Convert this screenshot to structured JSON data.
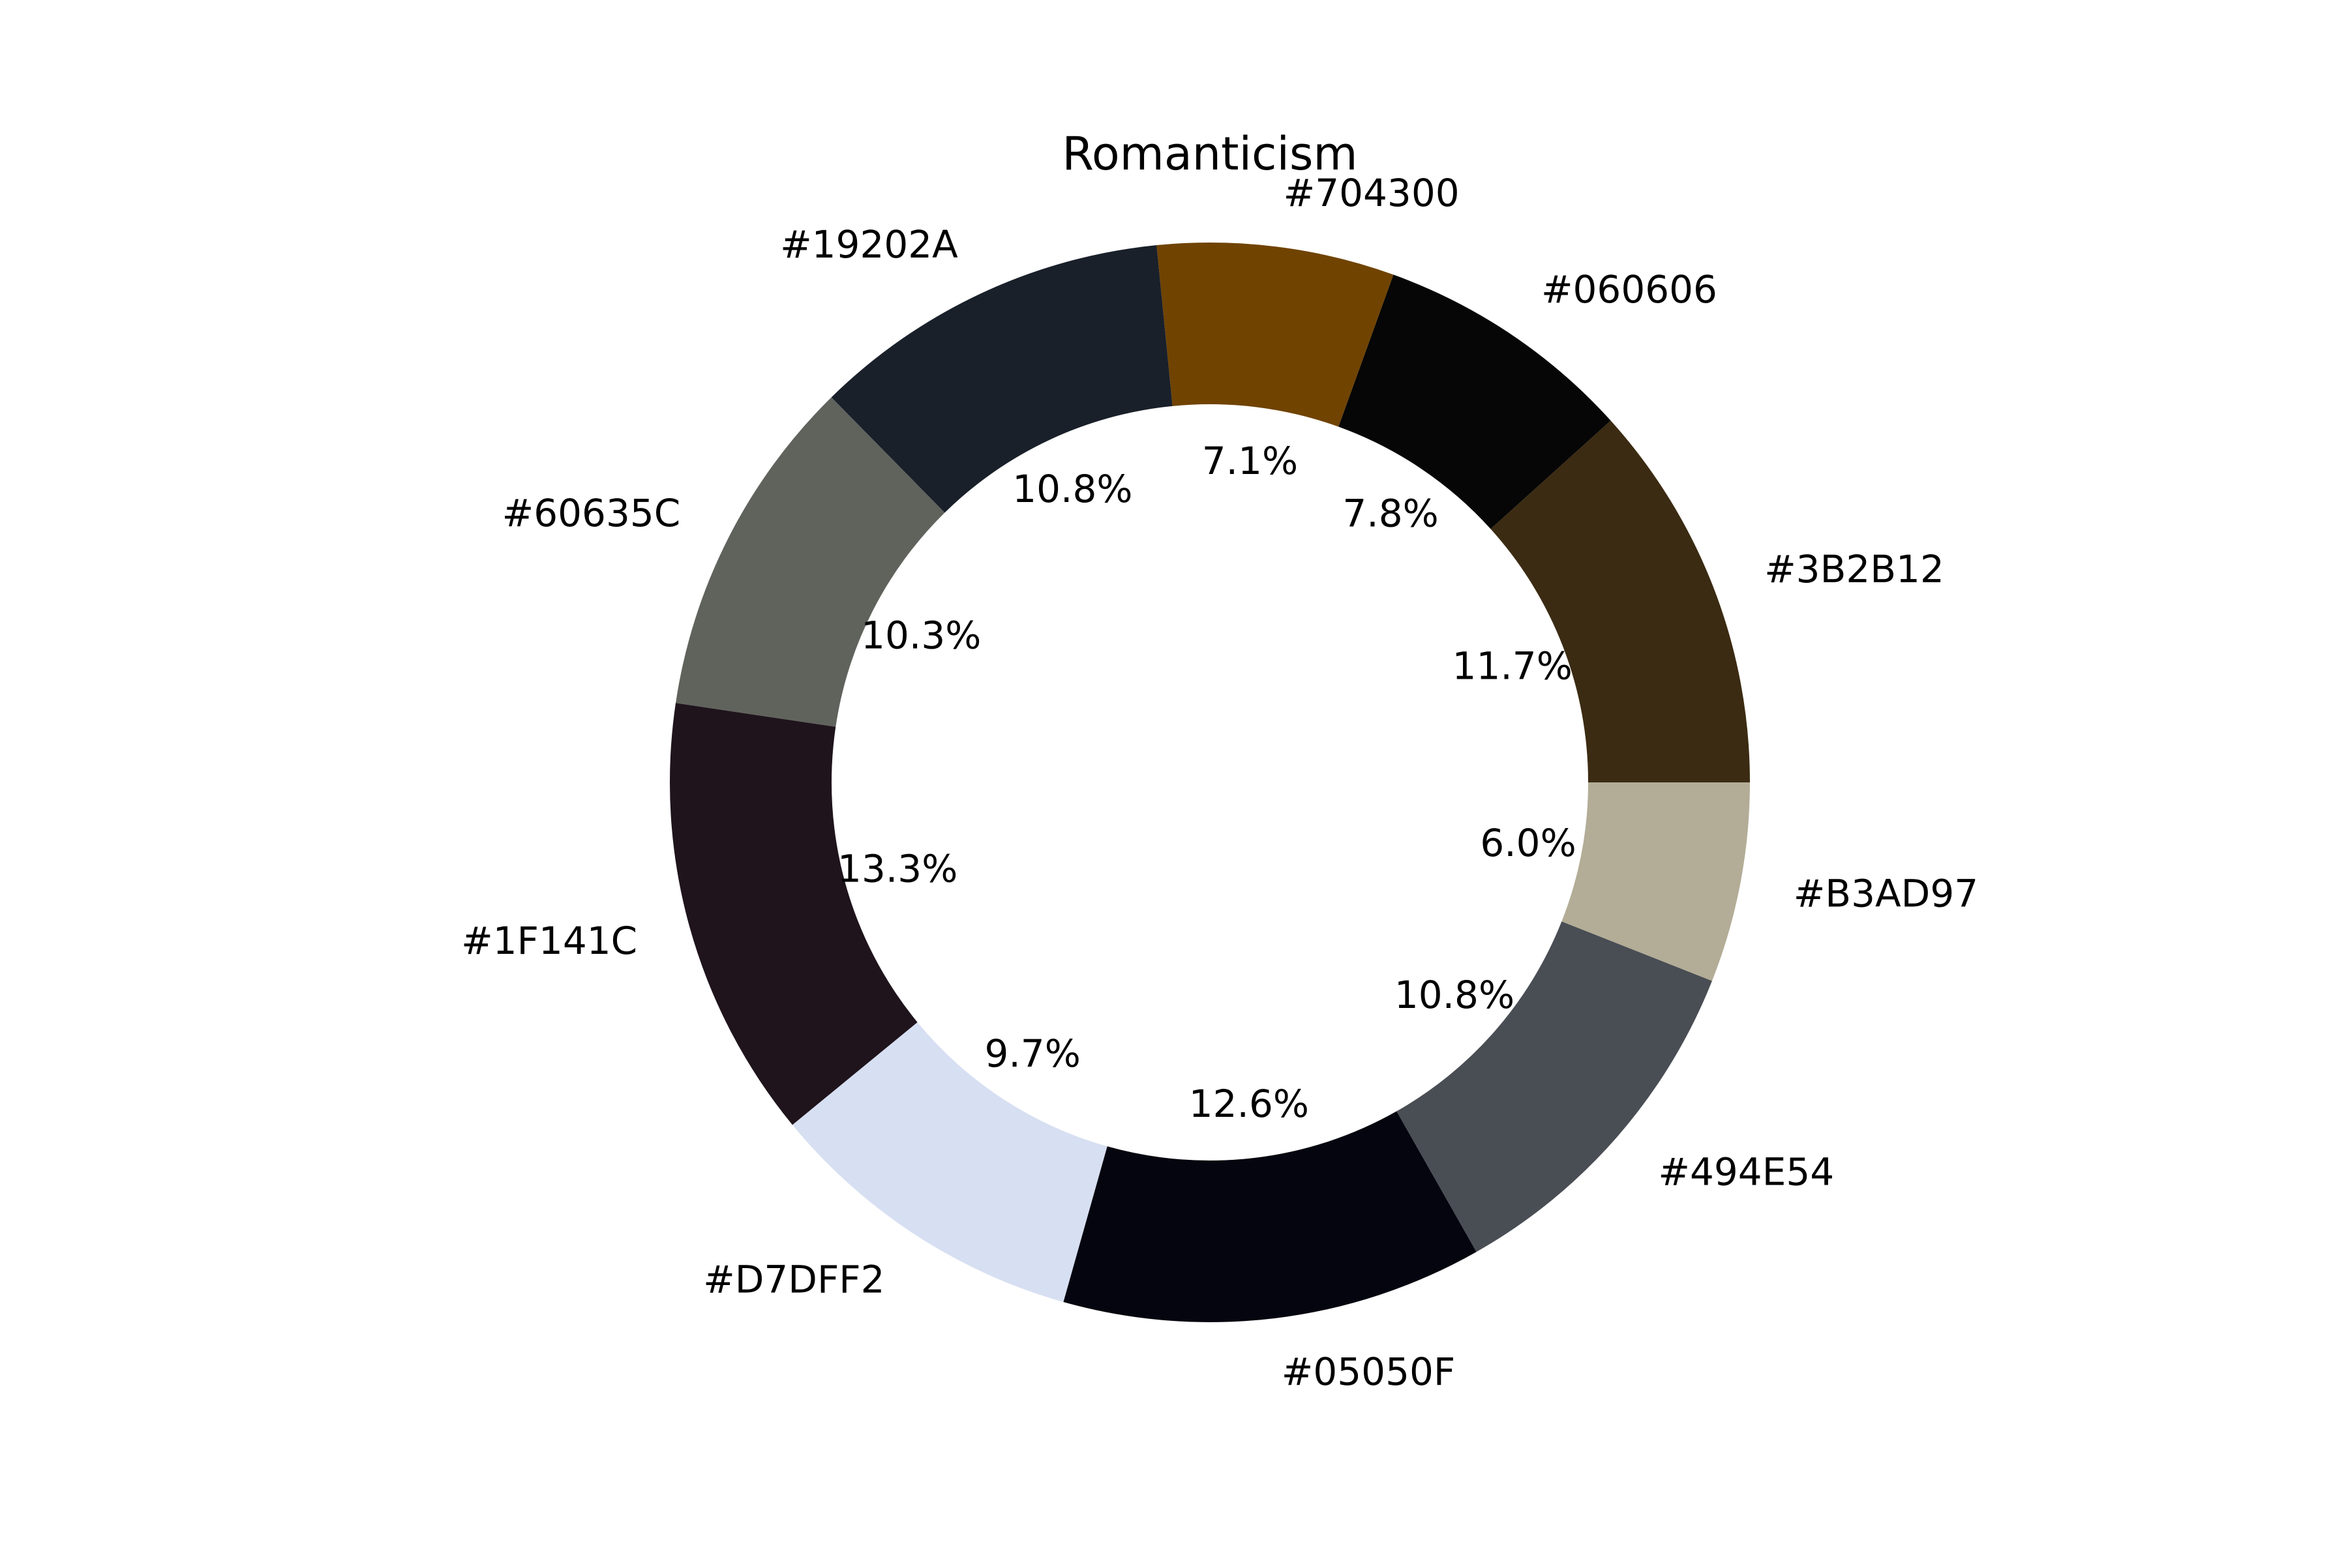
{
  "chart_data": {
    "type": "pie",
    "variant": "donut",
    "title": "Romanticism",
    "start_angle_deg": 0,
    "direction": "counterclockwise",
    "slices": [
      {
        "label": "#3B2B12",
        "value": 11.7,
        "pct_label": "11.7%",
        "color": "#3B2B12"
      },
      {
        "label": "#060606",
        "value": 7.8,
        "pct_label": "7.8%",
        "color": "#060606"
      },
      {
        "label": "#704300",
        "value": 7.1,
        "pct_label": "7.1%",
        "color": "#704300"
      },
      {
        "label": "#19202A",
        "value": 10.8,
        "pct_label": "10.8%",
        "color": "#19202A"
      },
      {
        "label": "#60635C",
        "value": 10.3,
        "pct_label": "10.3%",
        "color": "#60635C"
      },
      {
        "label": "#1F141C",
        "value": 13.3,
        "pct_label": "13.3%",
        "color": "#1F141C"
      },
      {
        "label": "#D7DFF2",
        "value": 9.7,
        "pct_label": "9.7%",
        "color": "#D7DFF2"
      },
      {
        "label": "#05050F",
        "value": 12.6,
        "pct_label": "12.6%",
        "color": "#05050F"
      },
      {
        "label": "#494E54",
        "value": 10.8,
        "pct_label": "10.8%",
        "color": "#494E54"
      },
      {
        "label": "#B3AD97",
        "value": 6.0,
        "pct_label": "6.0%",
        "color": "#B3AD97"
      }
    ]
  }
}
